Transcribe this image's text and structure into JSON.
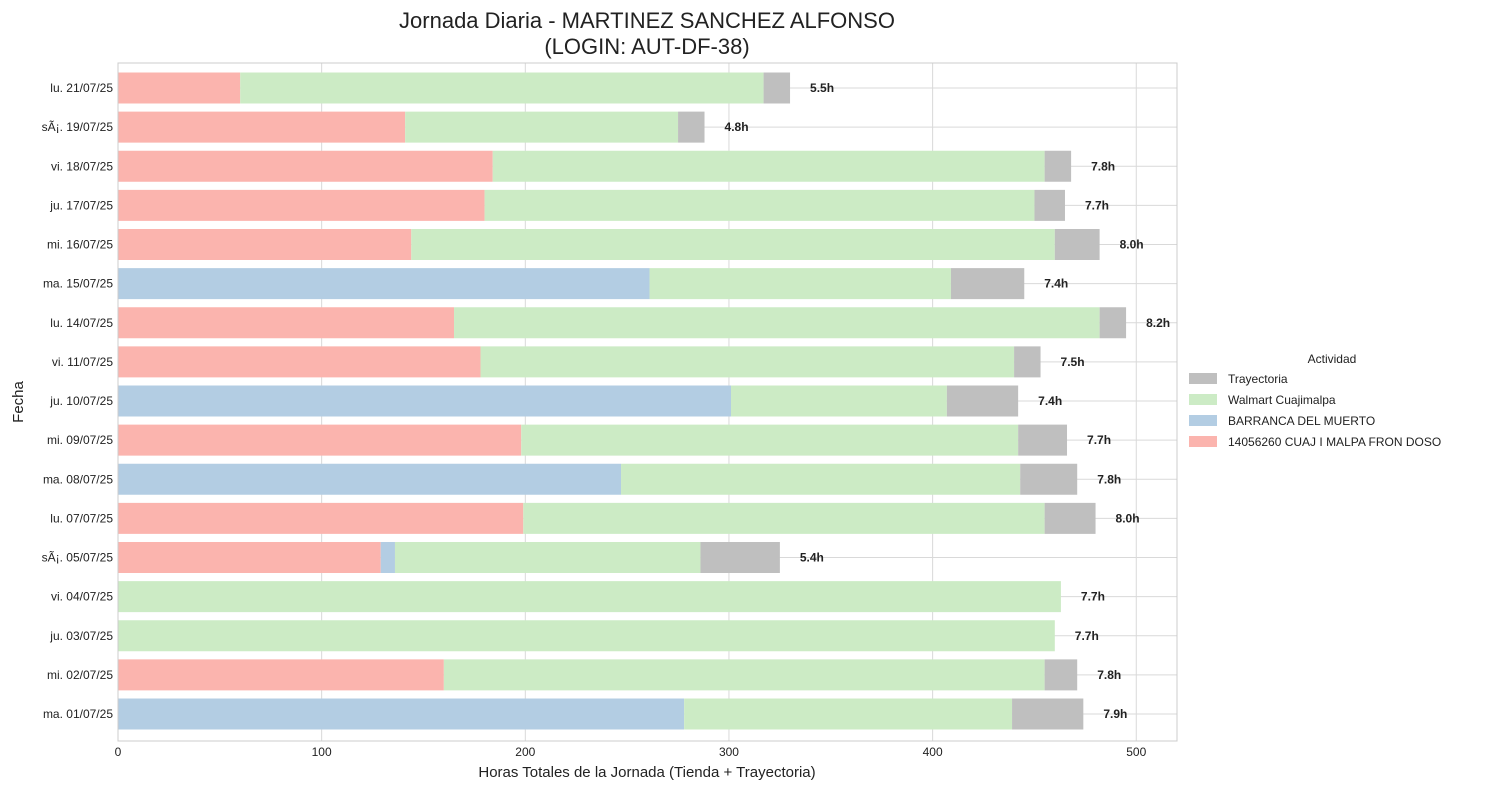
{
  "chart_data": {
    "type": "bar",
    "orientation": "horizontal",
    "stacked": true,
    "title_line1": "Jornada Diaria - MARTINEZ SANCHEZ ALFONSO",
    "title_line2": "(LOGIN: AUT-DF-38)",
    "xlabel": "Horas Totales de la Jornada (Tienda + Trayectoria)",
    "ylabel": "Fecha",
    "xlim": [
      0,
      520
    ],
    "xticks": [
      0,
      100,
      200,
      300,
      400,
      500
    ],
    "grid": true,
    "legend_title": "Actividad",
    "legend_position": "center-right",
    "categories": [
      "lu. 21/07/25",
      "sÃ¡. 19/07/25",
      "vi. 18/07/25",
      "ju. 17/07/25",
      "mi. 16/07/25",
      "ma. 15/07/25",
      "lu. 14/07/25",
      "vi. 11/07/25",
      "ju. 10/07/25",
      "mi. 09/07/25",
      "ma. 08/07/25",
      "lu. 07/07/25",
      "sÃ¡. 05/07/25",
      "vi. 04/07/25",
      "ju. 03/07/25",
      "mi. 02/07/25",
      "ma. 01/07/25"
    ],
    "series": [
      {
        "name": "14056260 CUAJ I MALPA FRON DOSO",
        "color": "#fbb4ae",
        "values": [
          60,
          141,
          184,
          180,
          144,
          0,
          165,
          178,
          0,
          198,
          0,
          199,
          129,
          0,
          0,
          160,
          0
        ]
      },
      {
        "name": "BARRANCA DEL MUERTO",
        "color": "#b3cde3",
        "values": [
          0,
          0,
          0,
          0,
          0,
          261,
          0,
          0,
          301,
          0,
          247,
          0,
          7,
          0,
          0,
          0,
          278
        ]
      },
      {
        "name": "Walmart Cuajimalpa",
        "color": "#ccebc5",
        "values": [
          257,
          134,
          271,
          270,
          316,
          148,
          317,
          262,
          106,
          244,
          196,
          256,
          150,
          463,
          460,
          295,
          161
        ]
      },
      {
        "name": "Trayectoria",
        "color": "#bfbfbf",
        "values": [
          13,
          13,
          13,
          15,
          22,
          36,
          13,
          13,
          35,
          24,
          28,
          25,
          39,
          0,
          0,
          16,
          35
        ]
      }
    ],
    "legend_order": [
      "Trayectoria",
      "Walmart Cuajimalpa",
      "BARRANCA DEL MUERTO",
      "14056260 CUAJ I MALPA FRON DOSO"
    ],
    "totals": [
      "5.5h",
      "4.8h",
      "7.8h",
      "7.7h",
      "8.0h",
      "7.4h",
      "8.2h",
      "7.5h",
      "7.4h",
      "7.7h",
      "7.8h",
      "8.0h",
      "5.4h",
      "7.7h",
      "7.7h",
      "7.8h",
      "7.9h"
    ]
  }
}
